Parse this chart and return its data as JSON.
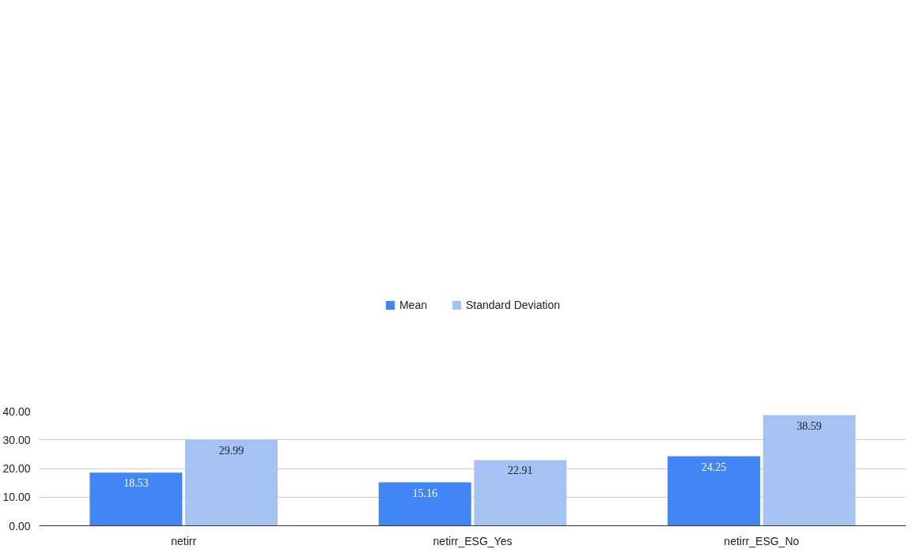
{
  "chart_data": {
    "type": "bar",
    "categories": [
      "netirr",
      "netirr_ESG_Yes",
      "netirr_ESG_No"
    ],
    "series": [
      {
        "name": "Mean",
        "color": "#4285f4",
        "values": [
          18.53,
          15.16,
          24.25
        ]
      },
      {
        "name": "Standard Deviation",
        "color": "#a4c2f4",
        "values": [
          29.99,
          22.91,
          38.59
        ]
      }
    ],
    "ylim": [
      0,
      40
    ],
    "yticks": [
      {
        "value": 0,
        "label": "0.00"
      },
      {
        "value": 10,
        "label": "10.00"
      },
      {
        "value": 20,
        "label": "20.00"
      },
      {
        "value": 30,
        "label": "30.00"
      },
      {
        "value": 40,
        "label": "40.00"
      }
    ],
    "grid": "y",
    "legend": "top",
    "data_labels": true
  }
}
